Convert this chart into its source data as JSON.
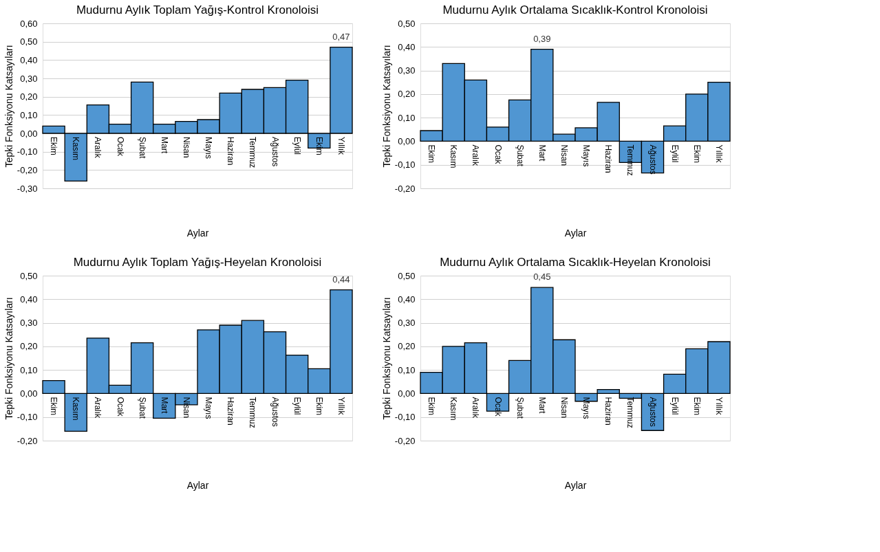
{
  "chart_data": [
    {
      "type": "bar",
      "title": "Mudurnu Aylık Toplam Yağış-Kontrol Kronoloisi",
      "xlabel": "Aylar",
      "ylabel": "Tepki Fonksiyonu Katsayıları",
      "categories": [
        "Ekim",
        "Kasım",
        "Aralık",
        "Ocak",
        "Şubat",
        "Mart",
        "Nisan",
        "Mayıs",
        "Haziran",
        "Temmuz",
        "Ağustos",
        "Eylül",
        "Ekim",
        "Yıllık"
      ],
      "color": "#5096d2",
      "values": [
        0.04,
        -0.26,
        0.155,
        0.05,
        0.28,
        0.05,
        0.065,
        0.075,
        0.22,
        0.24,
        0.25,
        0.29,
        -0.08,
        0.47
      ],
      "value_labels": [
        null,
        null,
        null,
        null,
        null,
        null,
        null,
        null,
        null,
        null,
        null,
        null,
        null,
        "0,47"
      ],
      "ylim": [
        -0.3,
        0.6
      ],
      "yticks": [
        {
          "value": -0.3,
          "label": "-0,30"
        },
        {
          "value": -0.2,
          "label": "-0,20"
        },
        {
          "value": -0.1,
          "label": "-0,10"
        },
        {
          "value": 0,
          "label": "0,00"
        },
        {
          "value": 0.1,
          "label": "0,10"
        },
        {
          "value": 0.2,
          "label": "0,20"
        },
        {
          "value": 0.3,
          "label": "0,30"
        },
        {
          "value": 0.4,
          "label": "0,40"
        },
        {
          "value": 0.5,
          "label": "0,50"
        },
        {
          "value": 0.6,
          "label": "0,60"
        }
      ],
      "grid": "y"
    },
    {
      "type": "bar",
      "title": "Mudurnu Aylık Ortalama Sıcaklık-Kontrol Kronoloisi",
      "xlabel": "Aylar",
      "ylabel": "Tepki Fonksiyonu Katsayıları",
      "categories": [
        "Ekim",
        "Kasım",
        "Aralık",
        "Ocak",
        "Şubat",
        "Mart",
        "Nisan",
        "Mayıs",
        "Haziran",
        "Temmuz",
        "Ağustos",
        "Eylül",
        "Ekim",
        "Yıllık"
      ],
      "color": "#5096d2",
      "values": [
        0.045,
        0.33,
        0.26,
        0.06,
        0.175,
        0.39,
        0.03,
        0.057,
        0.165,
        -0.09,
        -0.135,
        0.065,
        0.2,
        0.25
      ],
      "value_labels": [
        null,
        null,
        null,
        null,
        null,
        "0,39",
        null,
        null,
        null,
        null,
        null,
        null,
        null,
        null
      ],
      "ylim": [
        -0.2,
        0.5
      ],
      "yticks": [
        {
          "value": -0.2,
          "label": "-0,20"
        },
        {
          "value": -0.1,
          "label": "-0,10"
        },
        {
          "value": 0,
          "label": "0,00"
        },
        {
          "value": 0.1,
          "label": "0,10"
        },
        {
          "value": 0.2,
          "label": "0,20"
        },
        {
          "value": 0.3,
          "label": "0,30"
        },
        {
          "value": 0.4,
          "label": "0,40"
        },
        {
          "value": 0.5,
          "label": "0,50"
        }
      ],
      "grid": "y"
    },
    {
      "type": "bar",
      "title": "Mudurnu Aylık Toplam Yağış-Heyelan Kronoloisi",
      "xlabel": "Aylar",
      "ylabel": "Tepki Fonksiyonu Katsayıları",
      "categories": [
        "Ekim",
        "Kasım",
        "Aralık",
        "Ocak",
        "Şubat",
        "Mart",
        "Nisan",
        "Mayıs",
        "Haziran",
        "Temmuz",
        "Ağustos",
        "Eylül",
        "Ekim",
        "Yıllık"
      ],
      "color": "#5096d2",
      "values": [
        0.055,
        -0.16,
        0.235,
        0.035,
        0.215,
        -0.105,
        -0.048,
        0.27,
        0.29,
        0.31,
        0.262,
        0.163,
        0.105,
        0.44
      ],
      "value_labels": [
        null,
        null,
        null,
        null,
        null,
        null,
        null,
        null,
        null,
        null,
        null,
        null,
        null,
        "0,44"
      ],
      "ylim": [
        -0.2,
        0.5
      ],
      "yticks": [
        {
          "value": -0.2,
          "label": "-0,20"
        },
        {
          "value": -0.1,
          "label": "-0,10"
        },
        {
          "value": 0,
          "label": "0,00"
        },
        {
          "value": 0.1,
          "label": "0,10"
        },
        {
          "value": 0.2,
          "label": "0,20"
        },
        {
          "value": 0.3,
          "label": "0,30"
        },
        {
          "value": 0.4,
          "label": "0,40"
        },
        {
          "value": 0.5,
          "label": "0,50"
        }
      ],
      "grid": "y"
    },
    {
      "type": "bar",
      "title": "Mudurnu Aylık Ortalama Sıcaklık-Heyelan  Kronoloisi",
      "xlabel": "Aylar",
      "ylabel": "Tepki Fonksiyonu Katsayıları",
      "categories": [
        "Ekim",
        "Kasım",
        "Aralık",
        "Ocak",
        "Şubat",
        "Mart",
        "Nisan",
        "Mayıs",
        "Haziran",
        "Temmuz",
        "Ağustos",
        "Eylül",
        "Ekim",
        "Yıllık"
      ],
      "color": "#5096d2",
      "values": [
        0.09,
        0.2,
        0.215,
        -0.075,
        0.14,
        0.45,
        0.228,
        -0.033,
        0.017,
        -0.02,
        -0.157,
        0.082,
        0.19,
        0.22
      ],
      "value_labels": [
        null,
        null,
        null,
        null,
        null,
        "0,45",
        null,
        null,
        null,
        null,
        null,
        null,
        null,
        null
      ],
      "ylim": [
        -0.2,
        0.5
      ],
      "yticks": [
        {
          "value": -0.2,
          "label": "-0,20"
        },
        {
          "value": -0.1,
          "label": "-0,10"
        },
        {
          "value": 0,
          "label": "0,00"
        },
        {
          "value": 0.1,
          "label": "0,10"
        },
        {
          "value": 0.2,
          "label": "0,20"
        },
        {
          "value": 0.3,
          "label": "0,30"
        },
        {
          "value": 0.4,
          "label": "0,40"
        },
        {
          "value": 0.5,
          "label": "0,50"
        }
      ],
      "grid": "y"
    }
  ]
}
